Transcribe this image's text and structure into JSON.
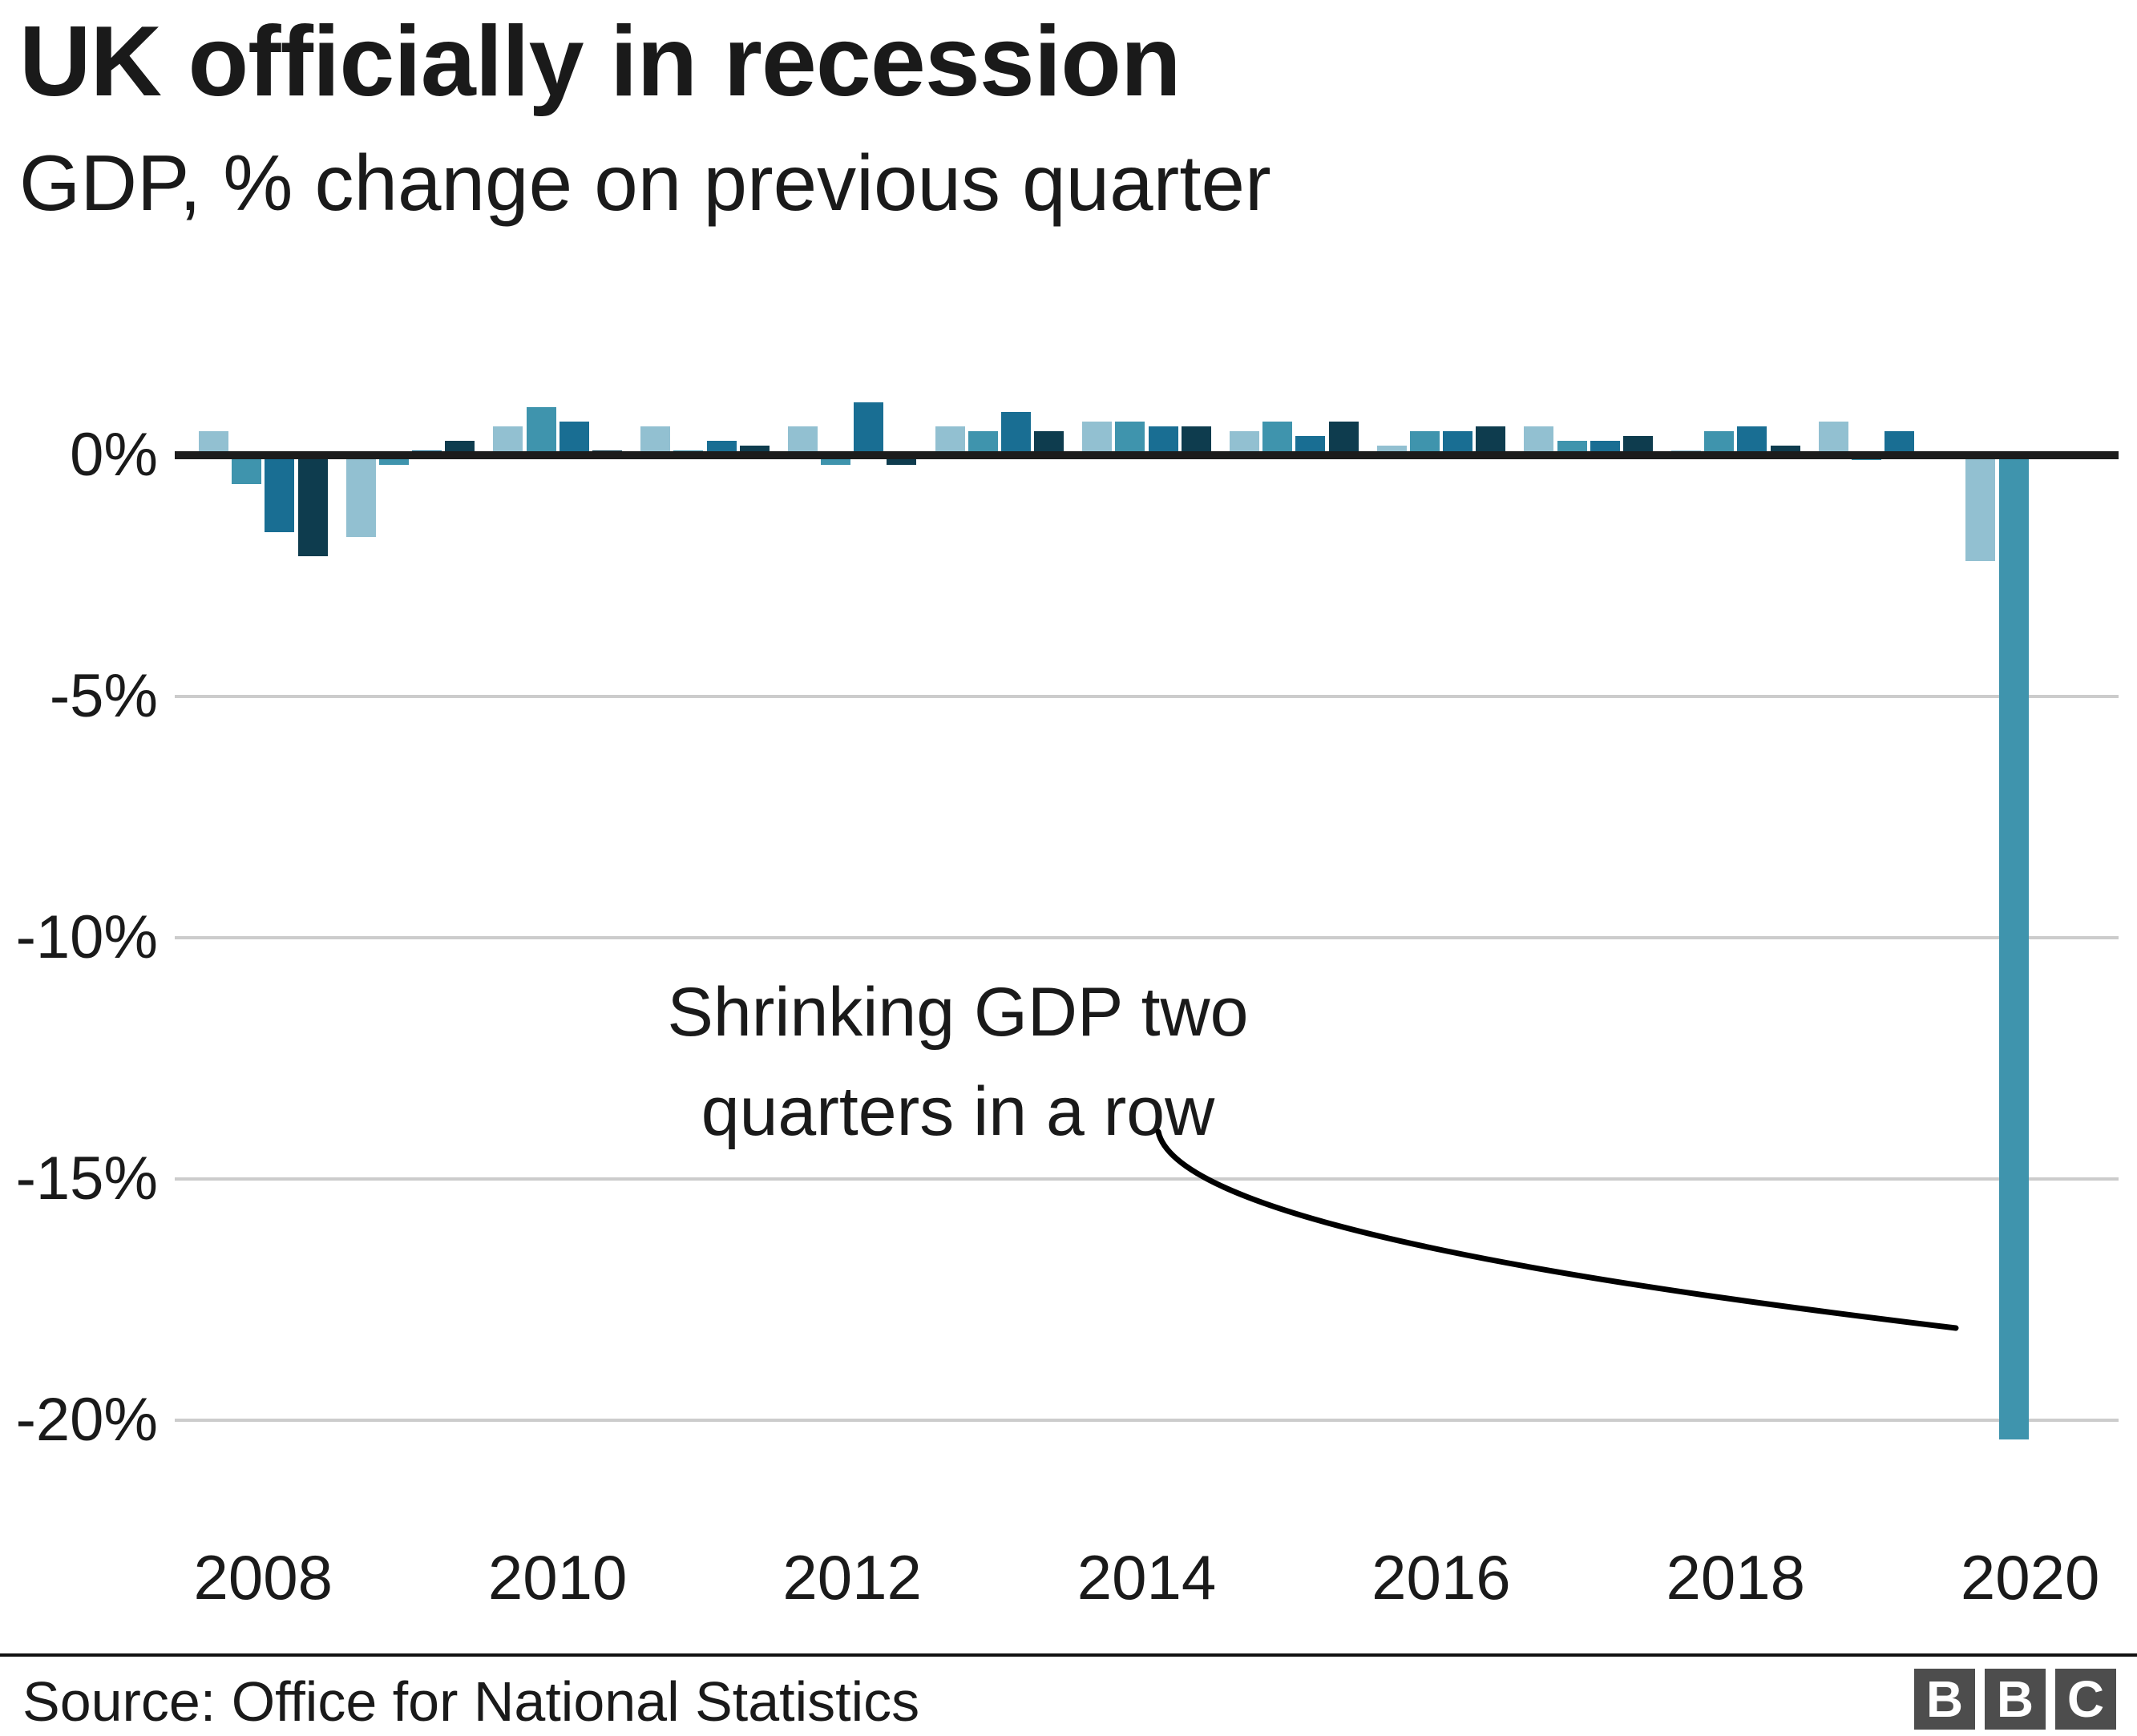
{
  "header": {
    "title": "UK officially in recession",
    "subtitle": "GDP, % change on previous quarter"
  },
  "chart_data": {
    "type": "bar",
    "title": "UK officially in recession",
    "ylabel": "GDP, % change on previous quarter",
    "unit": "%",
    "ylim": [
      -21.5,
      1.5
    ],
    "grid": true,
    "y_ticks": [
      {
        "label": "0%",
        "value": 0
      },
      {
        "label": "-5%",
        "value": -5
      },
      {
        "label": "-10%",
        "value": -10
      },
      {
        "label": "-15%",
        "value": -15
      },
      {
        "label": "-20%",
        "value": -20
      }
    ],
    "x_ticks": [
      2008,
      2010,
      2012,
      2014,
      2016,
      2018,
      2020
    ],
    "quarters": [
      {
        "period": "2008 Q1",
        "value": 0.5
      },
      {
        "period": "2008 Q2",
        "value": -0.6
      },
      {
        "period": "2008 Q3",
        "value": -1.6
      },
      {
        "period": "2008 Q4",
        "value": -2.1
      },
      {
        "period": "2009 Q1",
        "value": -1.7
      },
      {
        "period": "2009 Q2",
        "value": -0.2
      },
      {
        "period": "2009 Q3",
        "value": 0.1
      },
      {
        "period": "2009 Q4",
        "value": 0.3
      },
      {
        "period": "2010 Q1",
        "value": 0.6
      },
      {
        "period": "2010 Q2",
        "value": 1.0
      },
      {
        "period": "2010 Q3",
        "value": 0.7
      },
      {
        "period": "2010 Q4",
        "value": 0.1
      },
      {
        "period": "2011 Q1",
        "value": 0.6
      },
      {
        "period": "2011 Q2",
        "value": 0.1
      },
      {
        "period": "2011 Q3",
        "value": 0.3
      },
      {
        "period": "2011 Q4",
        "value": 0.2
      },
      {
        "period": "2012 Q1",
        "value": 0.6
      },
      {
        "period": "2012 Q2",
        "value": -0.2
      },
      {
        "period": "2012 Q3",
        "value": 1.1
      },
      {
        "period": "2012 Q4",
        "value": -0.2
      },
      {
        "period": "2013 Q1",
        "value": 0.6
      },
      {
        "period": "2013 Q2",
        "value": 0.5
      },
      {
        "period": "2013 Q3",
        "value": 0.9
      },
      {
        "period": "2013 Q4",
        "value": 0.5
      },
      {
        "period": "2014 Q1",
        "value": 0.7
      },
      {
        "period": "2014 Q2",
        "value": 0.7
      },
      {
        "period": "2014 Q3",
        "value": 0.6
      },
      {
        "period": "2014 Q4",
        "value": 0.6
      },
      {
        "period": "2015 Q1",
        "value": 0.5
      },
      {
        "period": "2015 Q2",
        "value": 0.7
      },
      {
        "period": "2015 Q3",
        "value": 0.4
      },
      {
        "period": "2015 Q4",
        "value": 0.7
      },
      {
        "period": "2016 Q1",
        "value": 0.2
      },
      {
        "period": "2016 Q2",
        "value": 0.5
      },
      {
        "period": "2016 Q3",
        "value": 0.5
      },
      {
        "period": "2016 Q4",
        "value": 0.6
      },
      {
        "period": "2017 Q1",
        "value": 0.6
      },
      {
        "period": "2017 Q2",
        "value": 0.3
      },
      {
        "period": "2017 Q3",
        "value": 0.3
      },
      {
        "period": "2017 Q4",
        "value": 0.4
      },
      {
        "period": "2018 Q1",
        "value": 0.1
      },
      {
        "period": "2018 Q2",
        "value": 0.5
      },
      {
        "period": "2018 Q3",
        "value": 0.6
      },
      {
        "period": "2018 Q4",
        "value": 0.2
      },
      {
        "period": "2019 Q1",
        "value": 0.7
      },
      {
        "period": "2019 Q2",
        "value": -0.1
      },
      {
        "period": "2019 Q3",
        "value": 0.5
      },
      {
        "period": "2019 Q4",
        "value": 0.0
      },
      {
        "period": "2020 Q1",
        "value": -2.2
      },
      {
        "period": "2020 Q2",
        "value": -20.4
      }
    ],
    "annotation": {
      "line1": "Shrinking GDP two",
      "line2": "quarters in a row",
      "points_to": "2020 Q2"
    },
    "colors": {
      "q1_light_blue": "#92c0d1",
      "q2_teal": "#3f94ad",
      "q3_medium_blue": "#196e93",
      "q4_dark_navy": "#0e3c4e",
      "axis": "#1c1c1c",
      "gridline": "#cccccc",
      "text": "#1a1a1a"
    },
    "legend_position": "none"
  },
  "footer": {
    "source": "Source: Office for National Statistics",
    "logo_letters": [
      "B",
      "B",
      "C"
    ]
  }
}
